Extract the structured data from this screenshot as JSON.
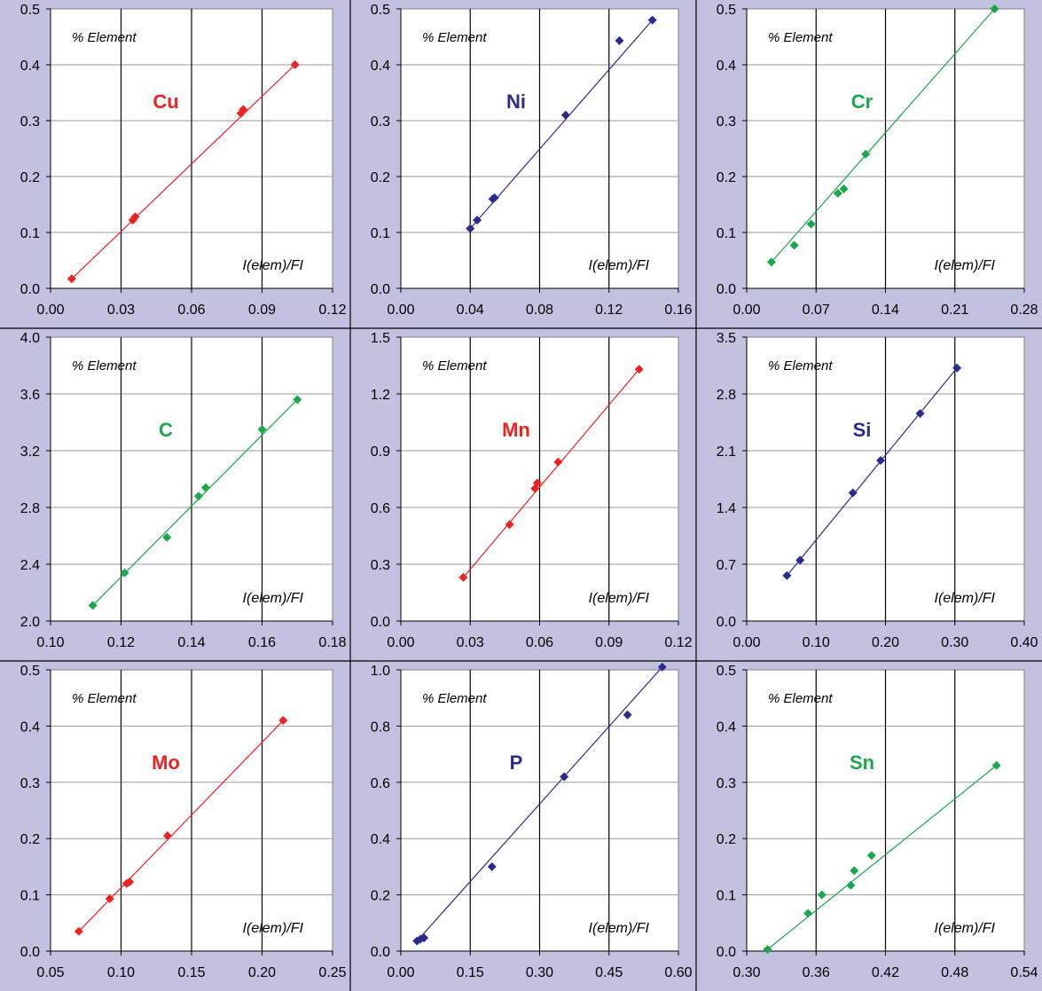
{
  "chart_data": [
    {
      "type": "scatter",
      "element": "Cu",
      "color": "#ee2222",
      "ylabel": "% Element",
      "xlabel": "I(elem)/FI",
      "xlim": [
        0.0,
        0.12
      ],
      "ylim": [
        0.0,
        0.5
      ],
      "xticks": [
        "0.00",
        "0.03",
        "0.06",
        "0.09",
        "0.12"
      ],
      "yticks": [
        "0.0",
        "0.1",
        "0.2",
        "0.3",
        "0.4",
        "0.5"
      ],
      "points": [
        [
          0.009,
          0.017
        ],
        [
          0.035,
          0.122
        ],
        [
          0.036,
          0.128
        ],
        [
          0.081,
          0.313
        ],
        [
          0.082,
          0.32
        ],
        [
          0.104,
          0.4
        ]
      ],
      "fit": [
        [
          0.009,
          0.017
        ],
        [
          0.104,
          0.4
        ]
      ]
    },
    {
      "type": "scatter",
      "element": "Ni",
      "color": "#2b2b8e",
      "ylabel": "% Element",
      "xlabel": "I(elem)/FI",
      "xlim": [
        0.0,
        0.16
      ],
      "ylim": [
        0.0,
        0.5
      ],
      "xticks": [
        "0.00",
        "0.04",
        "0.08",
        "0.12",
        "0.16"
      ],
      "yticks": [
        "0.0",
        "0.1",
        "0.2",
        "0.3",
        "0.4",
        "0.5"
      ],
      "points": [
        [
          0.04,
          0.107
        ],
        [
          0.044,
          0.122
        ],
        [
          0.053,
          0.16
        ],
        [
          0.054,
          0.162
        ],
        [
          0.095,
          0.31
        ],
        [
          0.126,
          0.443
        ],
        [
          0.145,
          0.48
        ]
      ],
      "fit": [
        [
          0.04,
          0.107
        ],
        [
          0.145,
          0.48
        ]
      ]
    },
    {
      "type": "scatter",
      "element": "Cr",
      "color": "#1aa84a",
      "ylabel": "% Element",
      "xlabel": "I(elem)/FI",
      "xlim": [
        0.0,
        0.28
      ],
      "ylim": [
        0.0,
        0.5
      ],
      "xticks": [
        "0.00",
        "0.07",
        "0.14",
        "0.21",
        "0.28"
      ],
      "yticks": [
        "0.0",
        "0.1",
        "0.2",
        "0.3",
        "0.4",
        "0.5"
      ],
      "points": [
        [
          0.025,
          0.047
        ],
        [
          0.048,
          0.077
        ],
        [
          0.065,
          0.115
        ],
        [
          0.092,
          0.17
        ],
        [
          0.098,
          0.178
        ],
        [
          0.12,
          0.24
        ],
        [
          0.25,
          0.5
        ]
      ],
      "fit": [
        [
          0.025,
          0.047
        ],
        [
          0.25,
          0.5
        ]
      ]
    },
    {
      "type": "scatter",
      "element": "C",
      "color": "#1aa84a",
      "ylabel": "% Element",
      "xlabel": "I(elem)/FI",
      "xlim": [
        0.1,
        0.18
      ],
      "ylim": [
        2.0,
        4.0
      ],
      "xticks": [
        "0.10",
        "0.12",
        "0.14",
        "0.16",
        "0.18"
      ],
      "yticks": [
        "2.0",
        "2.4",
        "2.8",
        "3.2",
        "3.6",
        "4.0"
      ],
      "points": [
        [
          0.112,
          2.11
        ],
        [
          0.121,
          2.34
        ],
        [
          0.133,
          2.59
        ],
        [
          0.142,
          2.88
        ],
        [
          0.144,
          2.94
        ],
        [
          0.16,
          3.35
        ],
        [
          0.17,
          3.56
        ]
      ],
      "fit": [
        [
          0.112,
          2.11
        ],
        [
          0.17,
          3.56
        ]
      ]
    },
    {
      "type": "scatter",
      "element": "Mn",
      "color": "#ee2222",
      "ylabel": "% Element",
      "xlabel": "I(elem)/FI",
      "xlim": [
        0.0,
        0.12
      ],
      "ylim": [
        0.0,
        1.5
      ],
      "xticks": [
        "0.00",
        "0.03",
        "0.06",
        "0.09",
        "0.12"
      ],
      "yticks": [
        "0.0",
        "0.3",
        "0.6",
        "0.9",
        "1.2",
        "1.5"
      ],
      "points": [
        [
          0.027,
          0.23
        ],
        [
          0.047,
          0.51
        ],
        [
          0.058,
          0.7
        ],
        [
          0.059,
          0.73
        ],
        [
          0.068,
          0.84
        ],
        [
          0.103,
          1.33
        ]
      ],
      "fit": [
        [
          0.027,
          0.23
        ],
        [
          0.103,
          1.33
        ]
      ]
    },
    {
      "type": "scatter",
      "element": "Si",
      "color": "#2b2b8e",
      "ylabel": "% Element",
      "xlabel": "I(elem)/FI",
      "xlim": [
        0.0,
        0.4
      ],
      "ylim": [
        0.0,
        3.5
      ],
      "xticks": [
        "0.00",
        "0.10",
        "0.20",
        "0.30",
        "0.40"
      ],
      "yticks": [
        "0.0",
        "0.7",
        "1.4",
        "2.1",
        "2.8",
        "3.5"
      ],
      "points": [
        [
          0.058,
          0.56
        ],
        [
          0.077,
          0.75
        ],
        [
          0.153,
          1.58
        ],
        [
          0.193,
          1.98
        ],
        [
          0.25,
          2.56
        ],
        [
          0.303,
          3.12
        ]
      ],
      "fit": [
        [
          0.058,
          0.56
        ],
        [
          0.303,
          3.12
        ]
      ]
    },
    {
      "type": "scatter",
      "element": "Mo",
      "color": "#ee2222",
      "ylabel": "% Element",
      "xlabel": "I(elem)/FI",
      "xlim": [
        0.05,
        0.25
      ],
      "ylim": [
        0.0,
        0.5
      ],
      "xticks": [
        "0.05",
        "0.10",
        "0.15",
        "0.20",
        "0.25"
      ],
      "yticks": [
        "0.0",
        "0.1",
        "0.2",
        "0.3",
        "0.4",
        "0.5"
      ],
      "points": [
        [
          0.07,
          0.035
        ],
        [
          0.092,
          0.093
        ],
        [
          0.104,
          0.12
        ],
        [
          0.106,
          0.123
        ],
        [
          0.133,
          0.205
        ],
        [
          0.215,
          0.41
        ]
      ],
      "fit": [
        [
          0.07,
          0.035
        ],
        [
          0.215,
          0.41
        ]
      ]
    },
    {
      "type": "scatter",
      "element": "P",
      "color": "#2b2b8e",
      "ylabel": "% Element",
      "xlabel": "I(elem)/FI",
      "xlim": [
        0.0,
        0.6
      ],
      "ylim": [
        0.0,
        1.0
      ],
      "xticks": [
        "0.00",
        "0.15",
        "0.30",
        "0.45",
        "0.60"
      ],
      "yticks": [
        "0.0",
        "0.2",
        "0.4",
        "0.6",
        "0.8",
        "1.0"
      ],
      "points": [
        [
          0.035,
          0.036
        ],
        [
          0.042,
          0.042
        ],
        [
          0.05,
          0.047
        ],
        [
          0.197,
          0.3
        ],
        [
          0.353,
          0.62
        ],
        [
          0.49,
          0.84
        ],
        [
          0.565,
          1.01
        ]
      ],
      "fit": [
        [
          0.035,
          0.036
        ],
        [
          0.565,
          1.01
        ]
      ]
    },
    {
      "type": "scatter",
      "element": "Sn",
      "color": "#1aa84a",
      "ylabel": "% Element",
      "xlabel": "I(elem)/FI",
      "xlim": [
        0.3,
        0.54
      ],
      "ylim": [
        0.0,
        0.5
      ],
      "xticks": [
        "0.30",
        "0.36",
        "0.42",
        "0.48",
        "0.54"
      ],
      "yticks": [
        "0.0",
        "0.1",
        "0.2",
        "0.3",
        "0.4",
        "0.5"
      ],
      "points": [
        [
          0.318,
          0.003
        ],
        [
          0.353,
          0.067
        ],
        [
          0.365,
          0.1
        ],
        [
          0.39,
          0.117
        ],
        [
          0.393,
          0.143
        ],
        [
          0.408,
          0.17
        ],
        [
          0.516,
          0.33
        ]
      ],
      "fit": [
        [
          0.318,
          0.003
        ],
        [
          0.516,
          0.33
        ]
      ]
    }
  ]
}
